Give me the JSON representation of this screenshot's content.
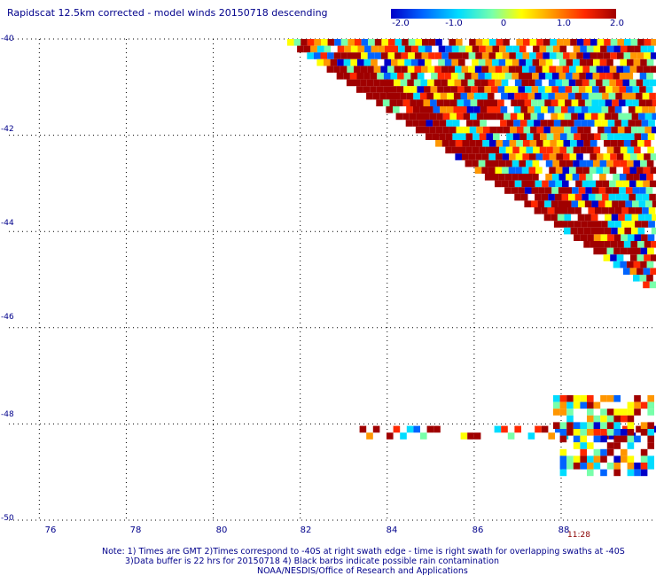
{
  "title": "Rapidscat 12.5km corrected - model winds 20150718 descending",
  "colorbar": {
    "ticks": [
      "-2.0",
      "-1.0",
      "0",
      "1.0",
      "2.0"
    ],
    "tick_values": [
      -2.0,
      -1.0,
      0,
      1.0,
      2.0
    ],
    "range": [
      -2.0,
      2.0
    ],
    "colors": [
      "#0000c8",
      "#0064ff",
      "#00dcff",
      "#78ffaa",
      "#ffff00",
      "#ff9600",
      "#ff2800",
      "#a00000"
    ]
  },
  "axes": {
    "y_labels": [
      "-40",
      "-42",
      "-44",
      "-46",
      "-48",
      "-50"
    ],
    "y_values": [
      -40,
      -42,
      -44,
      -46,
      -48,
      -50
    ],
    "x_labels": [
      "76",
      "78",
      "80",
      "82",
      "84",
      "86",
      "88"
    ],
    "x_values": [
      76,
      78,
      80,
      82,
      84,
      86,
      88
    ],
    "lon_range": [
      75.3,
      90.1
    ],
    "lat_range": [
      -50,
      -40
    ],
    "grid": "dotted"
  },
  "time_label": "11:28",
  "notes": {
    "line1": "Note: 1) Times are GMT 2)Times correspond to -40S at right swath edge - time is right swath for overlapping swaths at -40S",
    "line2": "3)Data buffer is 22 hrs for 20150718 4) Black barbs indicate possible rain contamination",
    "line3": "NOAA/NESDIS/Office of Research and Applications"
  },
  "swaths": [
    {
      "name": "upper",
      "lon_range": [
        82.0,
        90.1
      ],
      "lat_range": [
        -45.3,
        -40.0
      ]
    },
    {
      "name": "lower",
      "lon_range": [
        83.2,
        90.1
      ],
      "lat_range": [
        -49.0,
        -47.0
      ]
    }
  ]
}
